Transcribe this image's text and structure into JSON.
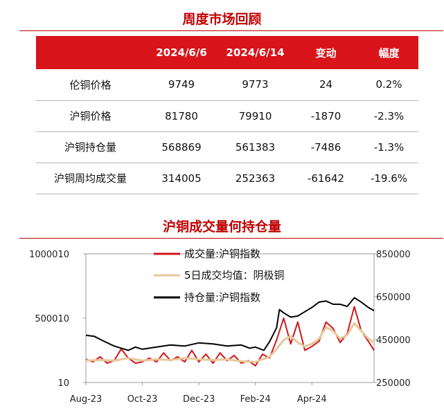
{
  "table_title": "周度市场回顾",
  "table": {
    "headers": [
      "",
      "2024/6/6",
      "2024/6/14",
      "变动",
      "幅度"
    ],
    "rows": [
      [
        "伦铜价格",
        "9749",
        "9773",
        "24",
        "0.2%"
      ],
      [
        "沪铜价格",
        "81780",
        "79910",
        "-1870",
        "-2.3%"
      ],
      [
        "沪铜持仓量",
        "568869",
        "561383",
        "-7486",
        "-1.3%"
      ],
      [
        "沪铜周均成交量",
        "314005",
        "252363",
        "-61642",
        "-19.6%"
      ]
    ]
  },
  "chart_title": "沪铜成交量何持仓量",
  "chart_data": {
    "type": "line",
    "title": "沪铜成交量何持仓量",
    "x_ticks": [
      "Aug-23",
      "Oct-23",
      "Dec-23",
      "Feb-24",
      "Apr-24"
    ],
    "x_tick_months": [
      0,
      2,
      4,
      6,
      8
    ],
    "x_range_months": [
      0,
      10.2
    ],
    "y_left": {
      "ticks": [
        "1000010",
        "500010",
        "10"
      ],
      "tick_values": [
        1000010,
        500010,
        10
      ],
      "range": [
        10,
        1000010
      ]
    },
    "y_right": {
      "ticks": [
        "850000",
        "650000",
        "450000",
        "250000"
      ],
      "tick_values": [
        850000,
        650000,
        450000,
        250000
      ],
      "range": [
        250000,
        850000
      ]
    },
    "legend_position": "top-center",
    "grid": false,
    "series": [
      {
        "name": "成交量:沪铜指数",
        "axis": "left",
        "color": "#d0151b",
        "points": [
          [
            0,
            180000
          ],
          [
            0.25,
            160000
          ],
          [
            0.5,
            200000
          ],
          [
            0.75,
            150000
          ],
          [
            1,
            170000
          ],
          [
            1.25,
            260000
          ],
          [
            1.5,
            190000
          ],
          [
            1.75,
            150000
          ],
          [
            2,
            160000
          ],
          [
            2.25,
            190000
          ],
          [
            2.5,
            160000
          ],
          [
            2.75,
            230000
          ],
          [
            3,
            170000
          ],
          [
            3.25,
            200000
          ],
          [
            3.5,
            160000
          ],
          [
            3.75,
            250000
          ],
          [
            4,
            160000
          ],
          [
            4.25,
            220000
          ],
          [
            4.5,
            150000
          ],
          [
            4.75,
            230000
          ],
          [
            5,
            170000
          ],
          [
            5.25,
            210000
          ],
          [
            5.5,
            150000
          ],
          [
            5.75,
            170000
          ],
          [
            6,
            130000
          ],
          [
            6.25,
            220000
          ],
          [
            6.5,
            190000
          ],
          [
            6.75,
            330000
          ],
          [
            7,
            500000
          ],
          [
            7.25,
            300000
          ],
          [
            7.5,
            470000
          ],
          [
            7.75,
            250000
          ],
          [
            8,
            280000
          ],
          [
            8.25,
            320000
          ],
          [
            8.5,
            470000
          ],
          [
            8.75,
            420000
          ],
          [
            9,
            310000
          ],
          [
            9.25,
            380000
          ],
          [
            9.5,
            590000
          ],
          [
            9.75,
            400000
          ],
          [
            10,
            320000
          ],
          [
            10.2,
            250000
          ]
        ]
      },
      {
        "name": "5日成交均值：阴极铜",
        "axis": "left",
        "color": "#e6c79a",
        "points": [
          [
            0,
            170000
          ],
          [
            0.5,
            175000
          ],
          [
            1,
            170000
          ],
          [
            1.5,
            190000
          ],
          [
            2,
            170000
          ],
          [
            2.5,
            180000
          ],
          [
            3,
            175000
          ],
          [
            3.5,
            190000
          ],
          [
            4,
            180000
          ],
          [
            4.5,
            175000
          ],
          [
            5,
            180000
          ],
          [
            5.5,
            165000
          ],
          [
            6,
            160000
          ],
          [
            6.5,
            200000
          ],
          [
            6.75,
            260000
          ],
          [
            7,
            330000
          ],
          [
            7.25,
            360000
          ],
          [
            7.5,
            310000
          ],
          [
            7.75,
            280000
          ],
          [
            8,
            300000
          ],
          [
            8.25,
            340000
          ],
          [
            8.5,
            430000
          ],
          [
            8.75,
            400000
          ],
          [
            9,
            340000
          ],
          [
            9.25,
            370000
          ],
          [
            9.5,
            460000
          ],
          [
            9.75,
            400000
          ],
          [
            10,
            340000
          ],
          [
            10.2,
            310000
          ]
        ]
      },
      {
        "name": "持仓量:沪铜指数",
        "axis": "right",
        "color": "#000000",
        "points": [
          [
            0,
            470000
          ],
          [
            0.3,
            465000
          ],
          [
            0.6,
            445000
          ],
          [
            1,
            420000
          ],
          [
            1.25,
            410000
          ],
          [
            1.5,
            400000
          ],
          [
            1.75,
            415000
          ],
          [
            2,
            405000
          ],
          [
            2.5,
            415000
          ],
          [
            3,
            425000
          ],
          [
            3.5,
            420000
          ],
          [
            4,
            435000
          ],
          [
            4.5,
            430000
          ],
          [
            5,
            420000
          ],
          [
            5.5,
            425000
          ],
          [
            5.8,
            410000
          ],
          [
            6,
            415000
          ],
          [
            6.3,
            400000
          ],
          [
            6.5,
            440000
          ],
          [
            6.75,
            505000
          ],
          [
            6.85,
            590000
          ],
          [
            7,
            575000
          ],
          [
            7.25,
            555000
          ],
          [
            7.5,
            560000
          ],
          [
            7.75,
            580000
          ],
          [
            8,
            600000
          ],
          [
            8.25,
            625000
          ],
          [
            8.5,
            630000
          ],
          [
            8.75,
            615000
          ],
          [
            9,
            615000
          ],
          [
            9.25,
            605000
          ],
          [
            9.5,
            645000
          ],
          [
            9.75,
            625000
          ],
          [
            10,
            600000
          ],
          [
            10.2,
            585000
          ]
        ]
      }
    ]
  }
}
